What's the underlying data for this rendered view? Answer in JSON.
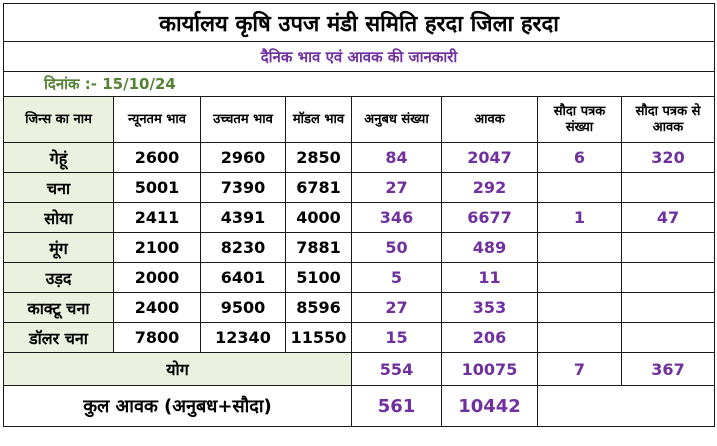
{
  "title": "कार्यालय कृषि उपज मंडी समिति हरदा जिला हरदा",
  "subtitle": "दैनिक भाव एवं आवक की जानकारी",
  "date_label": "दिनांक :- 15/10/24",
  "headers": [
    "जिन्स का नाम",
    "न्यूनतम भाव",
    "उच्चतम भाव",
    "मॉडल भाव",
    "अनुबध संख्या",
    "आवक",
    "सौदा पत्रक संख्या",
    "सौदा पत्रक से आवक"
  ],
  "rows": [
    {
      "name": "गेहूं",
      "min": "2600",
      "max": "2960",
      "model": "2850",
      "anubandh": "84",
      "aavak": "2047",
      "sauda_count": "6",
      "sauda_aavak": "320"
    },
    {
      "name": "चना",
      "min": "5001",
      "max": "7390",
      "model": "6781",
      "anubandh": "27",
      "aavak": "292",
      "sauda_count": "",
      "sauda_aavak": ""
    },
    {
      "name": "सोया",
      "min": "2411",
      "max": "4391",
      "model": "4000",
      "anubandh": "346",
      "aavak": "6677",
      "sauda_count": "1",
      "sauda_aavak": "47"
    },
    {
      "name": "मूंग",
      "min": "2100",
      "max": "8230",
      "model": "7881",
      "anubandh": "50",
      "aavak": "489",
      "sauda_count": "",
      "sauda_aavak": ""
    },
    {
      "name": "उड़द",
      "min": "2000",
      "max": "6401",
      "model": "5100",
      "anubandh": "5",
      "aavak": "11",
      "sauda_count": "",
      "sauda_aavak": ""
    },
    {
      "name": "काक्टू चना",
      "min": "2400",
      "max": "9500",
      "model": "8596",
      "anubandh": "27",
      "aavak": "353",
      "sauda_count": "",
      "sauda_aavak": ""
    },
    {
      "name": "डॉलर चना",
      "min": "7800",
      "max": "12340",
      "model": "11550",
      "anubandh": "15",
      "aavak": "206",
      "sauda_count": "",
      "sauda_aavak": ""
    }
  ],
  "total": {
    "label": "योग",
    "anubandh": "554",
    "aavak": "10075",
    "sauda_count": "7",
    "sauda_aavak": "367"
  },
  "grand_total": {
    "label": "कुल आवक (अनुबध+सौदा)",
    "anubandh": "561",
    "aavak": "10442"
  },
  "colors": {
    "purple": "#7030a0",
    "green_text": "#548235",
    "label_bg": "#ebf1de"
  }
}
